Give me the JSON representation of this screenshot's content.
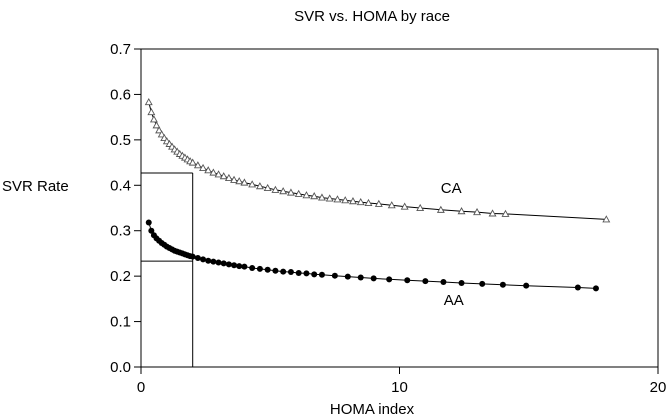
{
  "chart_data": {
    "type": "scatter",
    "title": "SVR vs. HOMA by race",
    "xlabel": "HOMA index",
    "ylabel": "SVR Rate",
    "xlim": [
      0,
      20
    ],
    "ylim": [
      0,
      0.7
    ],
    "xticks": [
      0,
      10,
      20
    ],
    "yticks": [
      0.0,
      0.1,
      0.2,
      0.3,
      0.4,
      0.5,
      0.6,
      0.7
    ],
    "xtick_labels": [
      "0",
      "10",
      "20"
    ],
    "ytick_labels": [
      "0.0",
      "0.1",
      "0.2",
      "0.3",
      "0.4",
      "0.5",
      "0.6",
      "0.7"
    ],
    "grid": false,
    "reference_lines": {
      "x": 2,
      "y_ca": 0.427,
      "y_aa": 0.233
    },
    "series": [
      {
        "name": "CA",
        "marker": "open-triangle",
        "color": "#555555",
        "curve_from": 0.3,
        "curve_to": 18.0,
        "points": [
          [
            0.3,
            0.583
          ],
          [
            0.4,
            0.561
          ],
          [
            0.5,
            0.545
          ],
          [
            0.6,
            0.532
          ],
          [
            0.7,
            0.521
          ],
          [
            0.8,
            0.512
          ],
          [
            0.9,
            0.504
          ],
          [
            1.0,
            0.497
          ],
          [
            1.1,
            0.491
          ],
          [
            1.2,
            0.485
          ],
          [
            1.3,
            0.479
          ],
          [
            1.4,
            0.474
          ],
          [
            1.5,
            0.469
          ],
          [
            1.6,
            0.465
          ],
          [
            1.7,
            0.461
          ],
          [
            1.8,
            0.457
          ],
          [
            1.9,
            0.453
          ],
          [
            2.0,
            0.45
          ],
          [
            2.2,
            0.444
          ],
          [
            2.4,
            0.438
          ],
          [
            2.6,
            0.433
          ],
          [
            2.8,
            0.428
          ],
          [
            3.0,
            0.424
          ],
          [
            3.2,
            0.42
          ],
          [
            3.4,
            0.416
          ],
          [
            3.6,
            0.412
          ],
          [
            3.8,
            0.409
          ],
          [
            4.0,
            0.406
          ],
          [
            4.3,
            0.402
          ],
          [
            4.6,
            0.398
          ],
          [
            4.9,
            0.394
          ],
          [
            5.2,
            0.39
          ],
          [
            5.5,
            0.387
          ],
          [
            5.8,
            0.384
          ],
          [
            6.1,
            0.381
          ],
          [
            6.4,
            0.378
          ],
          [
            6.7,
            0.376
          ],
          [
            7.0,
            0.373
          ],
          [
            7.3,
            0.371
          ],
          [
            7.6,
            0.369
          ],
          [
            7.9,
            0.367
          ],
          [
            8.2,
            0.365
          ],
          [
            8.5,
            0.363
          ],
          [
            8.8,
            0.361
          ],
          [
            9.2,
            0.359
          ],
          [
            9.7,
            0.356
          ],
          [
            10.2,
            0.353
          ],
          [
            10.8,
            0.35
          ],
          [
            11.6,
            0.346
          ],
          [
            12.4,
            0.343
          ],
          [
            13.0,
            0.341
          ],
          [
            13.6,
            0.338
          ],
          [
            14.1,
            0.337
          ],
          [
            18.0,
            0.325
          ]
        ]
      },
      {
        "name": "AA",
        "marker": "filled-circle",
        "color": "#000000",
        "curve_from": 0.3,
        "curve_to": 17.6,
        "points": [
          [
            0.3,
            0.318
          ],
          [
            0.4,
            0.3
          ],
          [
            0.5,
            0.29
          ],
          [
            0.6,
            0.283
          ],
          [
            0.7,
            0.278
          ],
          [
            0.8,
            0.273
          ],
          [
            0.9,
            0.269
          ],
          [
            1.0,
            0.265
          ],
          [
            1.1,
            0.262
          ],
          [
            1.2,
            0.259
          ],
          [
            1.3,
            0.256
          ],
          [
            1.4,
            0.254
          ],
          [
            1.5,
            0.252
          ],
          [
            1.6,
            0.25
          ],
          [
            1.7,
            0.248
          ],
          [
            1.8,
            0.246
          ],
          [
            1.9,
            0.244
          ],
          [
            2.0,
            0.243
          ],
          [
            2.2,
            0.24
          ],
          [
            2.4,
            0.237
          ],
          [
            2.6,
            0.234
          ],
          [
            2.8,
            0.232
          ],
          [
            3.0,
            0.23
          ],
          [
            3.2,
            0.228
          ],
          [
            3.4,
            0.226
          ],
          [
            3.6,
            0.224
          ],
          [
            3.8,
            0.222
          ],
          [
            4.0,
            0.221
          ],
          [
            4.3,
            0.218
          ],
          [
            4.6,
            0.216
          ],
          [
            4.9,
            0.214
          ],
          [
            5.2,
            0.212
          ],
          [
            5.5,
            0.21
          ],
          [
            5.8,
            0.209
          ],
          [
            6.1,
            0.207
          ],
          [
            6.4,
            0.206
          ],
          [
            6.7,
            0.204
          ],
          [
            7.0,
            0.203
          ],
          [
            7.5,
            0.201
          ],
          [
            8.0,
            0.199
          ],
          [
            8.5,
            0.197
          ],
          [
            9.0,
            0.195
          ],
          [
            9.6,
            0.193
          ],
          [
            10.3,
            0.191
          ],
          [
            11.0,
            0.189
          ],
          [
            11.7,
            0.187
          ],
          [
            12.4,
            0.185
          ],
          [
            13.2,
            0.183
          ],
          [
            14.0,
            0.181
          ],
          [
            14.9,
            0.179
          ],
          [
            16.9,
            0.175
          ],
          [
            17.6,
            0.173
          ]
        ]
      }
    ],
    "annotations": [
      {
        "text": "CA",
        "x": 12.0,
        "y": 0.383
      },
      {
        "text": "AA",
        "x": 12.1,
        "y": 0.136
      }
    ]
  }
}
